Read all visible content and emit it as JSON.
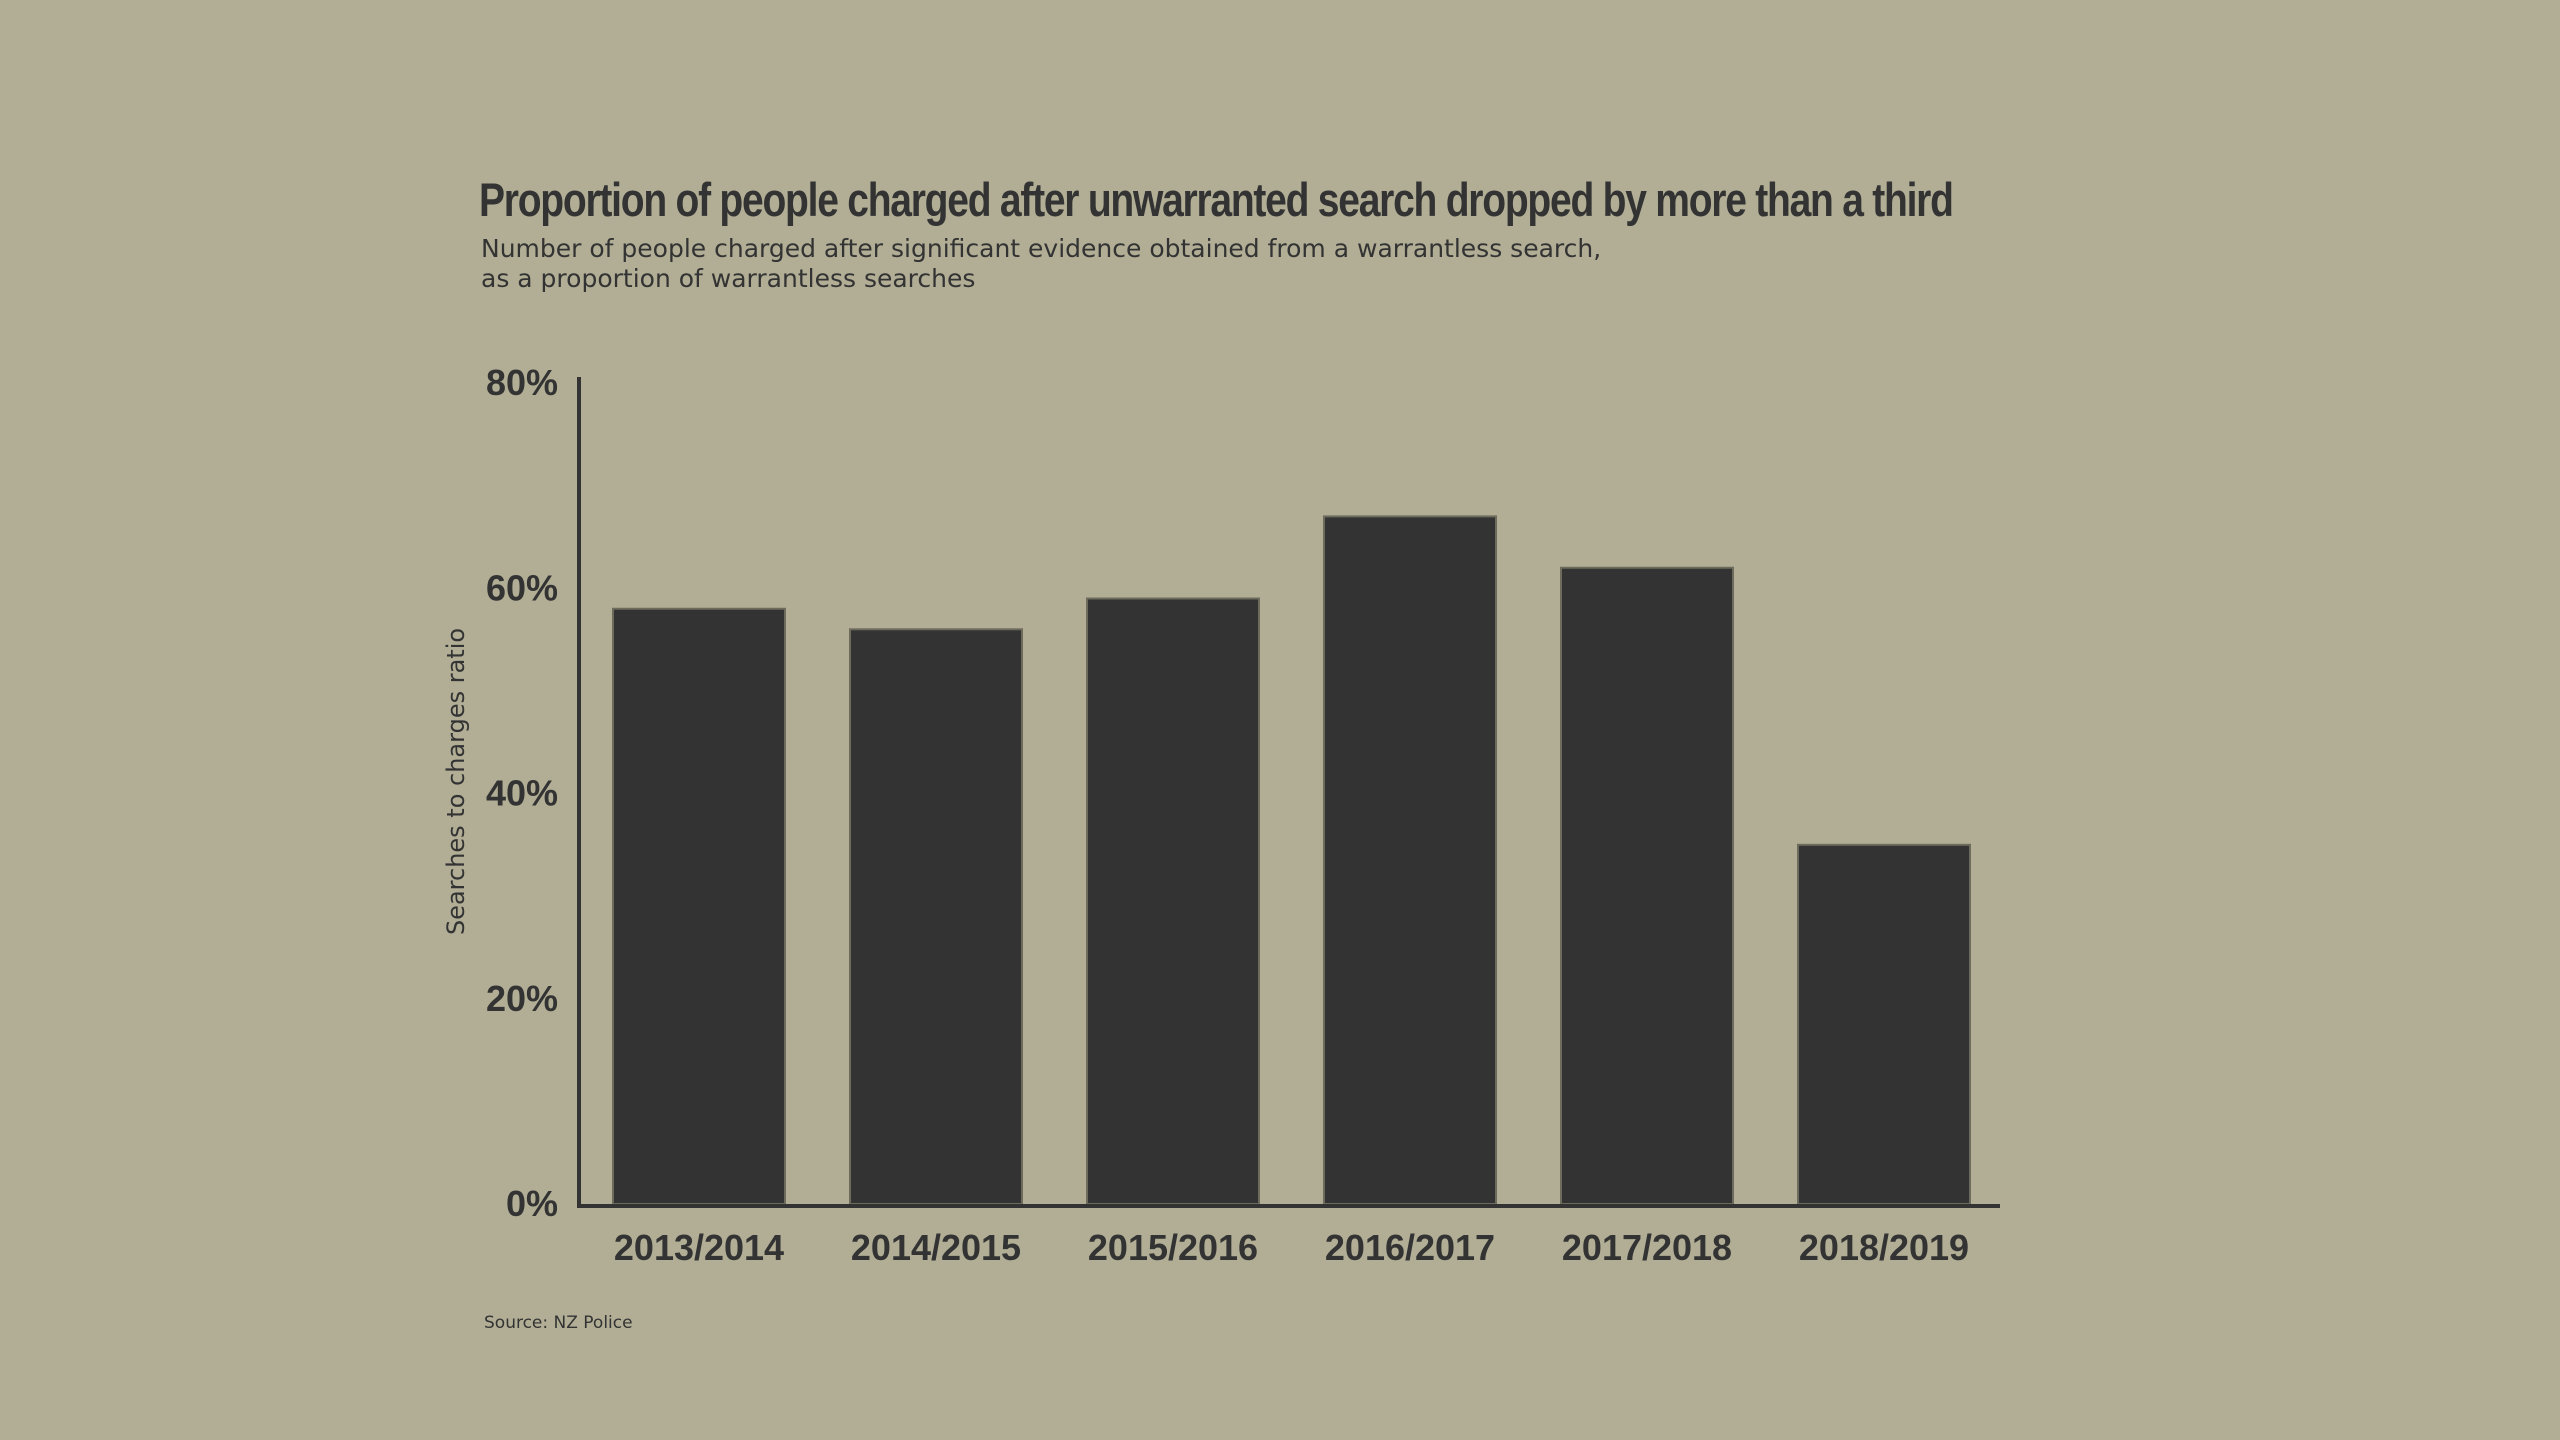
{
  "title": "Proportion of people charged after unwarranted search dropped by more than a third",
  "subtitle_lines": [
    "Number of people charged after significant evidence obtained from a warrantless search,",
    "as a proportion of warrantless searches"
  ],
  "source": "Source: NZ Police",
  "colors": {
    "background": "#b1ae95",
    "bar": "#333333",
    "text": "#333333"
  },
  "chart_data": {
    "type": "bar",
    "categories": [
      "2013/2014",
      "2014/2015",
      "2015/2016",
      "2016/2017",
      "2017/2018",
      "2018/2019"
    ],
    "values": [
      58,
      56,
      59,
      67,
      62,
      35
    ],
    "ylabel": "Searches to charges ratio",
    "xlabel": "",
    "ylim": [
      0,
      80
    ],
    "yticks": [
      0,
      20,
      40,
      60,
      80
    ],
    "ytick_labels": [
      "0%",
      "20%",
      "40%",
      "60%",
      "80%"
    ],
    "grid": false,
    "legend": "none"
  }
}
